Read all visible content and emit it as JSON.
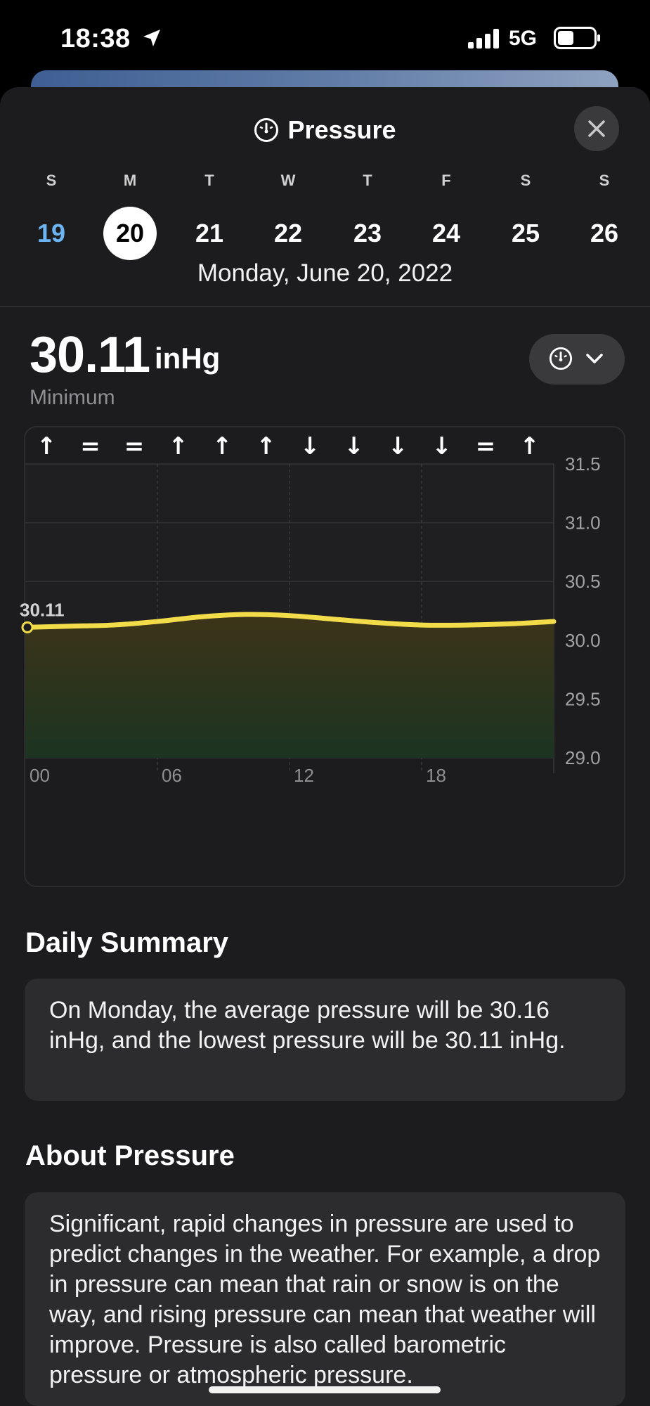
{
  "status_bar": {
    "time": "18:38",
    "network": "5G",
    "icons": [
      "location-arrow-icon",
      "signal-bars-icon",
      "battery-icon"
    ]
  },
  "header": {
    "title": "Pressure",
    "title_icon": "gauge-icon",
    "close_icon": "close-icon"
  },
  "week": {
    "days": [
      {
        "letter": "S",
        "number": "19",
        "state": "past"
      },
      {
        "letter": "M",
        "number": "20",
        "state": "selected"
      },
      {
        "letter": "T",
        "number": "21",
        "state": "future"
      },
      {
        "letter": "W",
        "number": "22",
        "state": "future"
      },
      {
        "letter": "T",
        "number": "23",
        "state": "future"
      },
      {
        "letter": "F",
        "number": "24",
        "state": "future"
      },
      {
        "letter": "S",
        "number": "25",
        "state": "future"
      },
      {
        "letter": "S",
        "number": "26",
        "state": "future"
      }
    ],
    "selected_date": "Monday, June 20, 2022"
  },
  "reading": {
    "value": "30.11",
    "unit": "inHg",
    "caption": "Minimum",
    "mode_icon": "gauge-icon",
    "mode_chevron": "chevron-down-icon"
  },
  "chart_data": {
    "type": "area",
    "trend_markers": [
      "↑",
      "=",
      "=",
      "↑",
      "↑",
      "↑",
      "↓",
      "↓",
      "↓",
      "↓",
      "=",
      "↑"
    ],
    "x_tick_labels": [
      "00",
      "06",
      "12",
      "18"
    ],
    "y_tick_labels": [
      "31.5",
      "31.0",
      "30.5",
      "30.0",
      "29.5",
      "29.0"
    ],
    "ylim": [
      29.0,
      31.5
    ],
    "xlim": [
      0,
      24
    ],
    "series": [
      {
        "x": [
          0,
          2,
          4,
          6,
          8,
          10,
          12,
          14,
          16,
          18,
          20,
          22,
          24
        ],
        "values": [
          30.11,
          30.12,
          30.13,
          30.16,
          30.2,
          30.22,
          30.21,
          30.18,
          30.15,
          30.13,
          30.13,
          30.14,
          30.16
        ]
      }
    ],
    "marker_label": "30.11",
    "line_color": "#f2dc4a",
    "grid": true
  },
  "summary": {
    "title": "Daily Summary",
    "text": "On Monday, the average pressure will be 30.16 inHg, and the lowest pressure will be 30.11 inHg."
  },
  "about": {
    "title": "About Pressure",
    "text": "Significant, rapid changes in pressure are used to predict changes in the weather. For example, a drop in pressure can mean that rain or snow is on the way, and rising pressure can mean that weather will improve. Pressure is also called barometric pressure or atmospheric pressure."
  }
}
